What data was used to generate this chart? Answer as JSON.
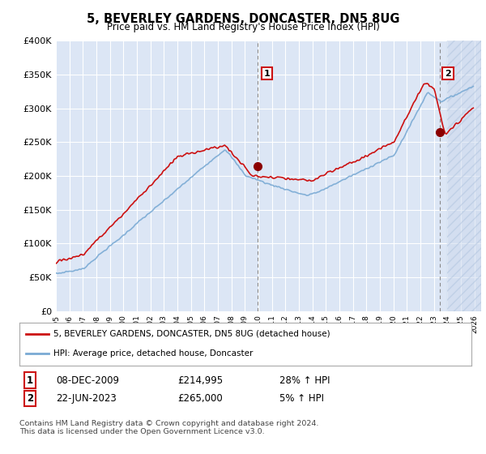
{
  "title": "5, BEVERLEY GARDENS, DONCASTER, DN5 8UG",
  "subtitle": "Price paid vs. HM Land Registry's House Price Index (HPI)",
  "ylim": [
    0,
    400000
  ],
  "yticks": [
    0,
    50000,
    100000,
    150000,
    200000,
    250000,
    300000,
    350000,
    400000
  ],
  "ytick_labels": [
    "£0",
    "£50K",
    "£100K",
    "£150K",
    "£200K",
    "£250K",
    "£300K",
    "£350K",
    "£400K"
  ],
  "plot_bg_color": "#dce6f5",
  "grid_color": "#ffffff",
  "hpi_color": "#7aaad4",
  "price_color": "#cc1111",
  "legend_entry1": "5, BEVERLEY GARDENS, DONCASTER, DN5 8UG (detached house)",
  "legend_entry2": "HPI: Average price, detached house, Doncaster",
  "table_row1": [
    "1",
    "08-DEC-2009",
    "£214,995",
    "28% ↑ HPI"
  ],
  "table_row2": [
    "2",
    "22-JUN-2023",
    "£265,000",
    "5% ↑ HPI"
  ],
  "footer": "Contains HM Land Registry data © Crown copyright and database right 2024.\nThis data is licensed under the Open Government Licence v3.0.",
  "hatch_region_start": 2024.0,
  "xlim_start": 1995,
  "xlim_end": 2026.5,
  "sale1_year": 2009.917,
  "sale1_value": 214995,
  "sale2_year": 2023.458,
  "sale2_value": 265000
}
